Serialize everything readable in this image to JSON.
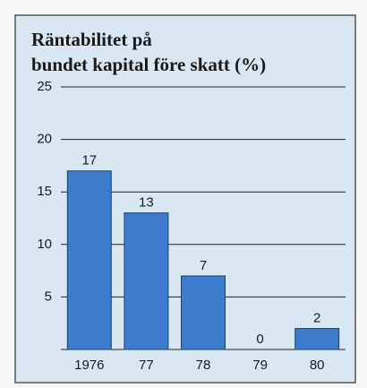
{
  "chart_data": {
    "type": "bar",
    "title": [
      "Räntabilitet på",
      "bundet kapital före skatt (%)"
    ],
    "categories": [
      "1976",
      "77",
      "78",
      "79",
      "80"
    ],
    "values": [
      17,
      13,
      7,
      0,
      2
    ],
    "color": "#3d7ccc",
    "ylim": [
      0,
      25
    ],
    "yticks": [
      5,
      10,
      15,
      20,
      25
    ],
    "grid": true
  }
}
